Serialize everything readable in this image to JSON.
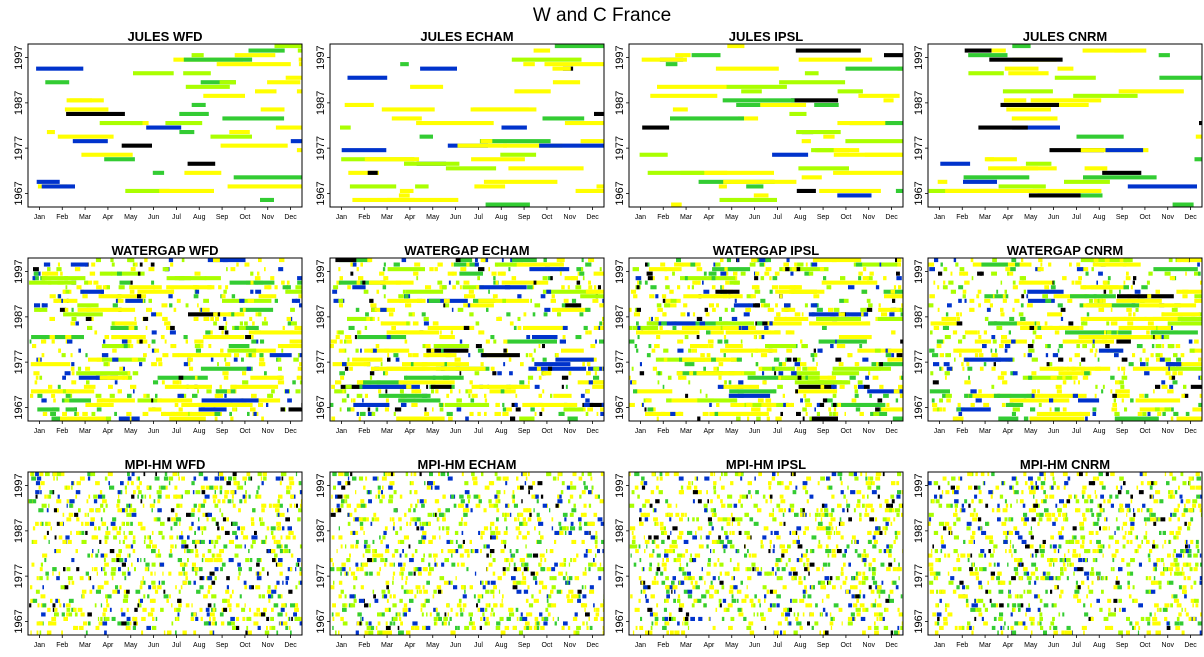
{
  "title": "W and C France",
  "colors": {
    "scale": [
      "#ffff00",
      "#aaff00",
      "#33cc33",
      "#0033cc",
      "#000000"
    ],
    "frame": "#000000",
    "background": "#ffffff"
  },
  "chart_data": {
    "type": "heatmap",
    "layout": {
      "rows": 3,
      "cols": 4
    },
    "x_ticks": [
      "Jan",
      "Feb",
      "Mar",
      "Apr",
      "May",
      "Jun",
      "Jul",
      "Aug",
      "Sep",
      "Oct",
      "Nov",
      "Dec"
    ],
    "y_ticks": [
      "1967",
      "1977",
      "1987",
      "1997"
    ],
    "y_range": [
      1964,
      2000
    ],
    "panels": [
      {
        "title": "JULES WFD",
        "style": "runs",
        "seed": 11
      },
      {
        "title": "JULES ECHAM",
        "style": "runs",
        "seed": 23
      },
      {
        "title": "JULES IPSL",
        "style": "runs",
        "seed": 37
      },
      {
        "title": "JULES CNRM",
        "style": "runs",
        "seed": 41
      },
      {
        "title": "WATERGAP WFD",
        "style": "mixed",
        "seed": 53
      },
      {
        "title": "WATERGAP ECHAM",
        "style": "mixed",
        "seed": 67
      },
      {
        "title": "WATERGAP IPSL",
        "style": "mixed",
        "seed": 71
      },
      {
        "title": "WATERGAP CNRM",
        "style": "mixed",
        "seed": 83
      },
      {
        "title": "MPI-HM WFD",
        "style": "specks",
        "seed": 97
      },
      {
        "title": "MPI-HM ECHAM",
        "style": "specks",
        "seed": 101
      },
      {
        "title": "MPI-HM IPSL",
        "style": "specks",
        "seed": 113
      },
      {
        "title": "MPI-HM CNRM",
        "style": "specks",
        "seed": 127
      }
    ]
  }
}
